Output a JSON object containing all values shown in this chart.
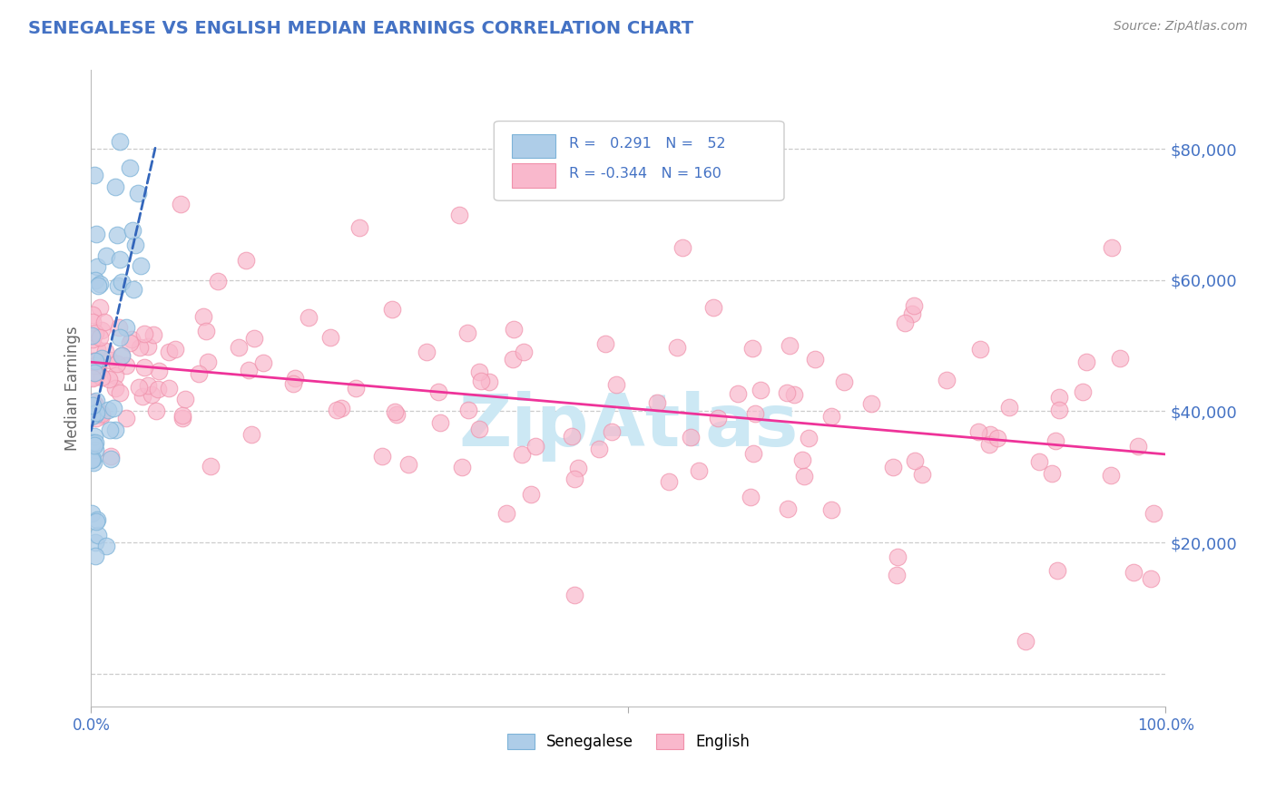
{
  "title": "SENEGALESE VS ENGLISH MEDIAN EARNINGS CORRELATION CHART",
  "source": "Source: ZipAtlas.com",
  "ylabel": "Median Earnings",
  "yticks": [
    0,
    20000,
    40000,
    60000,
    80000
  ],
  "ytick_labels": [
    "",
    "$20,000",
    "$40,000",
    "$60,000",
    "$80,000"
  ],
  "ylim": [
    -5000,
    92000
  ],
  "xlim": [
    0,
    100
  ],
  "blue_color": "#aecde8",
  "pink_color": "#f9b8cc",
  "blue_edge_color": "#7db3d8",
  "pink_edge_color": "#f090aa",
  "blue_line_color": "#3366bb",
  "pink_line_color": "#ee3399",
  "title_color": "#4472c4",
  "axis_color": "#4472c4",
  "grid_color": "#cccccc",
  "watermark_color": "#cce8f4",
  "source_color": "#888888",
  "legend_box_color": "#dddddd",
  "bottom_legend_blue": "Senegalese",
  "bottom_legend_pink": "English"
}
